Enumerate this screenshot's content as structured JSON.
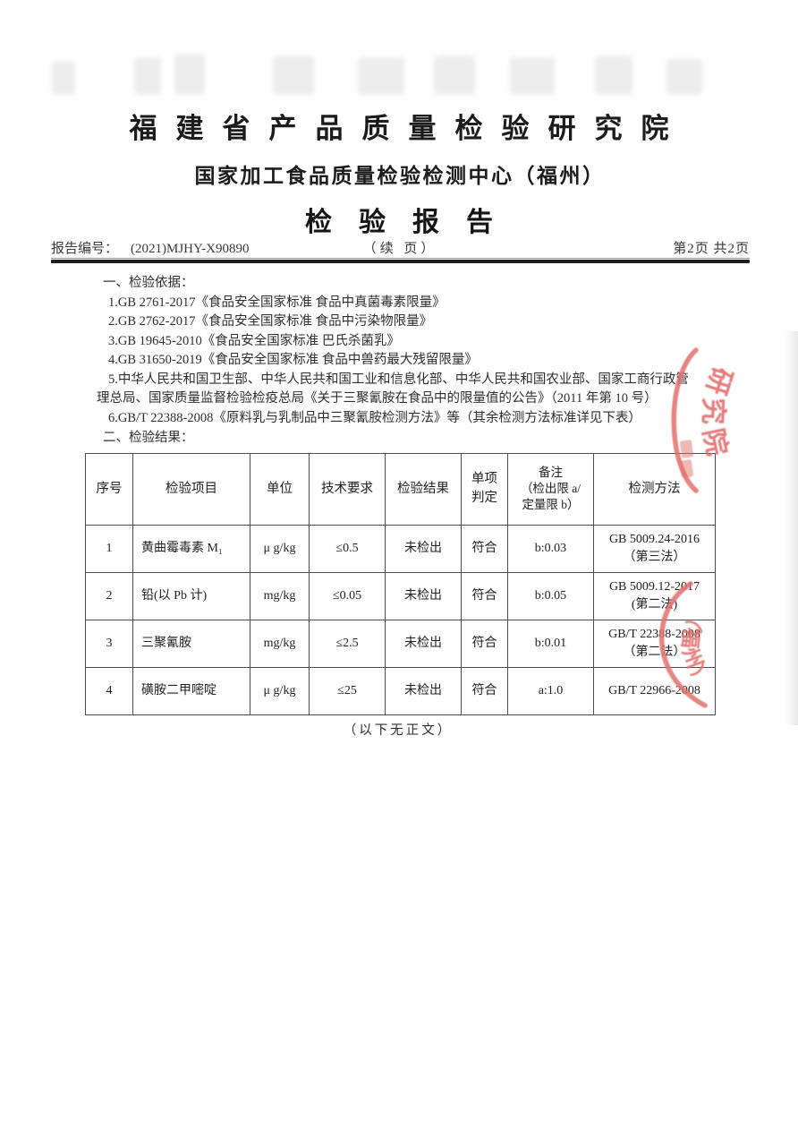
{
  "header": {
    "institute": "福建省产品质量检验研究院",
    "center": "国家加工食品质量检验检测中心（福州）",
    "report_title": "检验报告"
  },
  "meta": {
    "report_no_label": "报告编号：",
    "report_no": "(2021)MJHY-X90890",
    "continuation": "（续 页）",
    "page_indicator": "第2页  共2页"
  },
  "basis": {
    "heading": "一、检验依据：",
    "items": [
      "1.GB 2761-2017《食品安全国家标准 食品中真菌毒素限量》",
      "2.GB 2762-2017《食品安全国家标准 食品中污染物限量》",
      "3.GB 19645-2010《食品安全国家标准 巴氏杀菌乳》",
      "4.GB 31650-2019《食品安全国家标准 食品中兽药最大残留限量》",
      "5.中华人民共和国卫生部、中华人民共和国工业和信息化部、中华人民共和国农业部、国家工商行政管理总局、国家质量监督检验检疫总局《关于三聚氰胺在食品中的限量值的公告》（2011 年第 10 号）",
      "6.GB/T 22388-2008《原料乳与乳制品中三聚氰胺检测方法》等（其余检测方法标准详见下表）"
    ]
  },
  "results": {
    "heading": "二、检验结果：",
    "table": {
      "columns": [
        "序号",
        "检验项目",
        "单位",
        "技术要求",
        "检验结果",
        "单项\n判定",
        "备注\n（检出限 a/\n定量限 b）",
        "检测方法"
      ],
      "rows": [
        [
          "1",
          "黄曲霉毒素 M₁",
          "μ g/kg",
          "≤0.5",
          "未检出",
          "符合",
          "b:0.03",
          "GB 5009.24-2016\n（第三法）"
        ],
        [
          "2",
          "铅(以 Pb 计)",
          "mg/kg",
          "≤0.05",
          "未检出",
          "符合",
          "b:0.05",
          "GB 5009.12-2017\n(第二法)"
        ],
        [
          "3",
          "三聚氰胺",
          "mg/kg",
          "≤2.5",
          "未检出",
          "符合",
          "b:0.01",
          "GB/T 22388-2008\n（第二法）"
        ],
        [
          "4",
          "磺胺二甲嘧啶",
          "μ g/kg",
          "≤25",
          "未检出",
          "符合",
          "a:1.0",
          "GB/T 22966-2008"
        ]
      ]
    },
    "end_note": "（以下无正文）"
  },
  "stamps": {
    "color": "#e2706d",
    "upper_arc_text": "研究院",
    "lower_arc_text": "（福州）"
  }
}
